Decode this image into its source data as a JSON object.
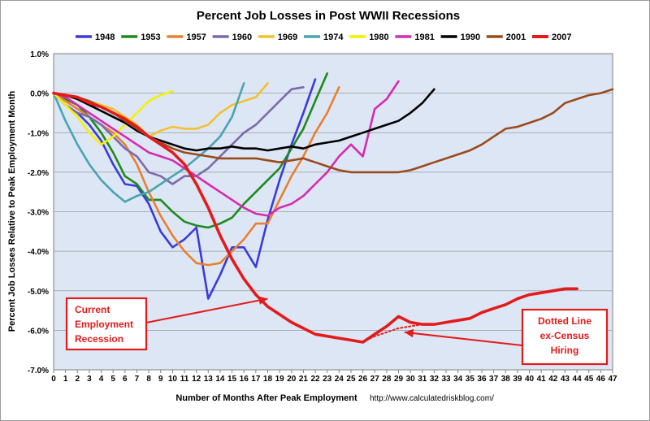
{
  "chart_data": {
    "type": "line",
    "title": "Percent Job Losses in Post WWII Recessions",
    "xlabel": "Number of Months After Peak Employment",
    "ylabel": "Percent Job Losses Relative to Peak Employment Month",
    "source": "http://www.calculatedriskblog.com/",
    "xlim": [
      0,
      47
    ],
    "ylim": [
      -7.0,
      1.0
    ],
    "x_ticks": [
      "0",
      "1",
      "2",
      "3",
      "4",
      "5",
      "6",
      "7",
      "8",
      "9",
      "10",
      "11",
      "12",
      "13",
      "14",
      "15",
      "16",
      "17",
      "18",
      "19",
      "20",
      "21",
      "22",
      "23",
      "24",
      "25",
      "26",
      "27",
      "28",
      "29",
      "30",
      "31",
      "32",
      "33",
      "34",
      "35",
      "36",
      "37",
      "38",
      "39",
      "40",
      "41",
      "42",
      "43",
      "44",
      "45",
      "46",
      "47"
    ],
    "y_ticks": [
      "1.0%",
      "0.0%",
      "-1.0%",
      "-2.0%",
      "-3.0%",
      "-4.0%",
      "-5.0%",
      "-6.0%",
      "-7.0%"
    ],
    "grid": true,
    "legend_position": "top",
    "series": [
      {
        "name": "1948",
        "color": "#3b3bdb",
        "values": [
          0,
          -0.3,
          -0.5,
          -0.8,
          -1.2,
          -1.8,
          -2.3,
          -2.35,
          -2.8,
          -3.5,
          -3.9,
          -3.7,
          -3.4,
          -5.2,
          -4.6,
          -3.9,
          -3.9,
          -4.4,
          -3.2,
          -2.2,
          -1.3,
          -0.5,
          0.35
        ]
      },
      {
        "name": "1953",
        "color": "#1e8a1e",
        "values": [
          0,
          -0.15,
          -0.3,
          -0.6,
          -1.0,
          -1.5,
          -2.1,
          -2.3,
          -2.7,
          -2.7,
          -3.0,
          -3.25,
          -3.35,
          -3.4,
          -3.3,
          -3.15,
          -2.8,
          -2.5,
          -2.2,
          -1.9,
          -1.4,
          -0.9,
          -0.2,
          0.5
        ]
      },
      {
        "name": "1957",
        "color": "#e8802f",
        "values": [
          0,
          -0.2,
          -0.4,
          -0.6,
          -0.8,
          -1.0,
          -1.3,
          -1.8,
          -2.5,
          -3.1,
          -3.6,
          -4.0,
          -4.3,
          -4.35,
          -4.3,
          -4.0,
          -3.7,
          -3.3,
          -3.3,
          -2.7,
          -2.1,
          -1.6,
          -1.0,
          -0.5,
          0.15
        ]
      },
      {
        "name": "1960",
        "color": "#7b6aa8",
        "values": [
          0,
          -0.3,
          -0.5,
          -0.6,
          -0.8,
          -1.1,
          -1.4,
          -1.6,
          -2.0,
          -2.1,
          -2.3,
          -2.1,
          -2.1,
          -1.9,
          -1.6,
          -1.3,
          -1.0,
          -0.8,
          -0.5,
          -0.2,
          0.1,
          0.15
        ]
      },
      {
        "name": "1969",
        "color": "#f2c12e",
        "values": [
          0,
          -0.05,
          -0.1,
          -0.2,
          -0.3,
          -0.4,
          -0.6,
          -0.8,
          -1.1,
          -0.95,
          -0.85,
          -0.9,
          -0.9,
          -0.8,
          -0.5,
          -0.3,
          -0.2,
          -0.1,
          0.25
        ]
      },
      {
        "name": "1974",
        "color": "#4aa3b0",
        "values": [
          0,
          -0.7,
          -1.3,
          -1.8,
          -2.2,
          -2.5,
          -2.75,
          -2.6,
          -2.5,
          -2.3,
          -2.1,
          -1.9,
          -1.65,
          -1.4,
          -1.1,
          -0.6,
          0.25
        ]
      },
      {
        "name": "1980",
        "color": "#f2f200",
        "values": [
          0,
          -0.3,
          -0.6,
          -1.0,
          -1.3,
          -1.1,
          -0.8,
          -0.5,
          -0.2,
          -0.05,
          0.05
        ]
      },
      {
        "name": "1981",
        "color": "#d62bb0",
        "values": [
          0,
          -0.1,
          -0.3,
          -0.5,
          -0.7,
          -0.9,
          -1.1,
          -1.3,
          -1.5,
          -1.6,
          -1.7,
          -1.9,
          -2.1,
          -2.3,
          -2.5,
          -2.7,
          -2.9,
          -3.05,
          -3.1,
          -2.9,
          -2.8,
          -2.6,
          -2.3,
          -2.0,
          -1.6,
          -1.3,
          -1.6,
          -0.4,
          -0.15,
          0.3
        ]
      },
      {
        "name": "1990",
        "color": "#000000",
        "values": [
          0,
          -0.05,
          -0.15,
          -0.3,
          -0.45,
          -0.6,
          -0.75,
          -0.95,
          -1.1,
          -1.2,
          -1.3,
          -1.4,
          -1.45,
          -1.4,
          -1.4,
          -1.35,
          -1.4,
          -1.4,
          -1.45,
          -1.4,
          -1.35,
          -1.4,
          -1.3,
          -1.25,
          -1.2,
          -1.1,
          -1.0,
          -0.9,
          -0.8,
          -0.7,
          -0.5,
          -0.25,
          0.1
        ]
      },
      {
        "name": "2001",
        "color": "#9b4a1c",
        "values": [
          0,
          -0.05,
          -0.1,
          -0.2,
          -0.35,
          -0.5,
          -0.7,
          -0.9,
          -1.1,
          -1.25,
          -1.4,
          -1.5,
          -1.55,
          -1.6,
          -1.65,
          -1.65,
          -1.65,
          -1.65,
          -1.7,
          -1.75,
          -1.7,
          -1.65,
          -1.75,
          -1.85,
          -1.95,
          -2.0,
          -2.0,
          -2.0,
          -2.0,
          -2.0,
          -1.95,
          -1.85,
          -1.75,
          -1.65,
          -1.55,
          -1.45,
          -1.3,
          -1.1,
          -0.9,
          -0.85,
          -0.75,
          -0.65,
          -0.5,
          -0.25,
          -0.15,
          -0.05,
          0.0,
          0.1
        ]
      },
      {
        "name": "2007",
        "color": "#e31b1b",
        "values": [
          0,
          -0.05,
          -0.1,
          -0.25,
          -0.35,
          -0.5,
          -0.65,
          -0.85,
          -1.1,
          -1.3,
          -1.5,
          -1.8,
          -2.3,
          -2.9,
          -3.6,
          -4.2,
          -4.7,
          -5.1,
          -5.4,
          -5.6,
          -5.8,
          -5.95,
          -6.1,
          -6.15,
          -6.2,
          -6.25,
          -6.3,
          -6.1,
          -5.9,
          -5.65,
          -5.8,
          -5.85,
          -5.85,
          -5.8,
          -5.75,
          -5.7,
          -5.55,
          -5.45,
          -5.35,
          -5.2,
          -5.1,
          -5.05,
          -5.0,
          -4.95,
          -4.95
        ]
      },
      {
        "name": "2007 ex-Census",
        "color": "#e31b1b",
        "dotted": true,
        "x": [
          26,
          27,
          28,
          29,
          30,
          31,
          32
        ],
        "values": [
          -6.3,
          -6.15,
          -6.05,
          -5.95,
          -5.9,
          -5.85,
          -5.85
        ]
      }
    ],
    "annotations": [
      {
        "lines": [
          "Current",
          "Employment",
          "Recession"
        ],
        "arrow_to": [
          18,
          -5.2
        ]
      },
      {
        "lines": [
          "Dotted Line",
          "ex-Census",
          "Hiring"
        ],
        "arrow_to": [
          29.5,
          -6.05
        ]
      }
    ]
  }
}
